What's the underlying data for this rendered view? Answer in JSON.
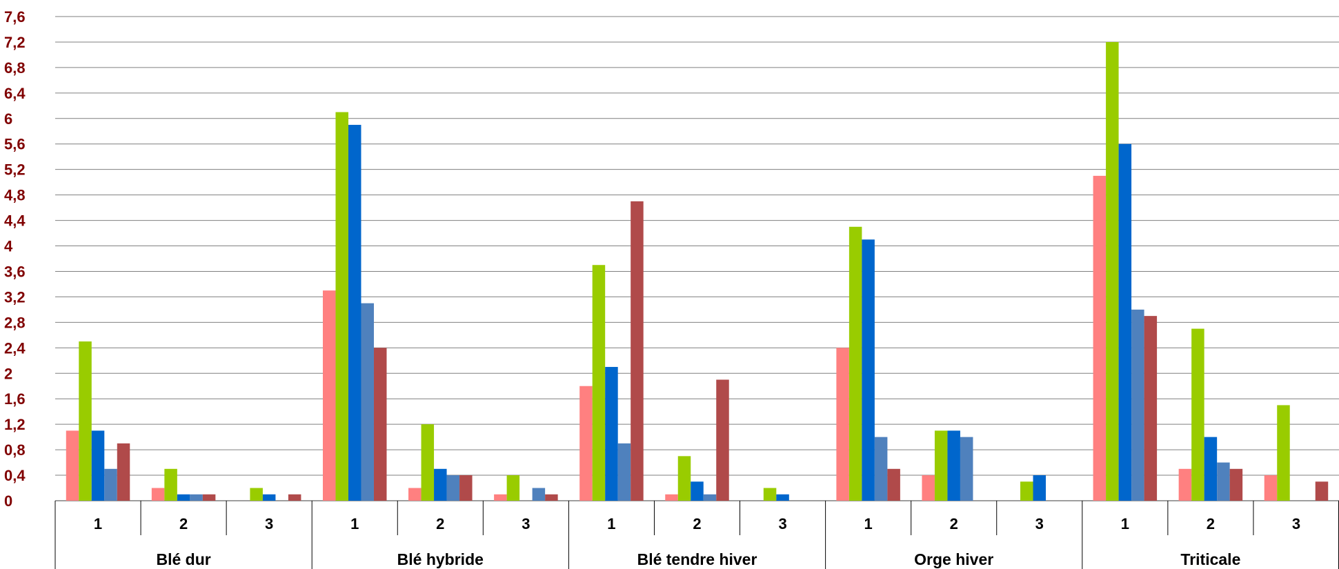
{
  "chart_data": {
    "type": "bar",
    "title": "",
    "xlabel": "",
    "ylabel": "",
    "ylim": [
      0,
      7.6
    ],
    "y_ticks": [
      "0",
      "0,4",
      "0,8",
      "1,2",
      "1,6",
      "2",
      "2,4",
      "2,8",
      "3,2",
      "3,6",
      "4",
      "4,4",
      "4,8",
      "5,2",
      "5,6",
      "6",
      "6,4",
      "6,8",
      "7,2",
      "7,6"
    ],
    "grid": true,
    "legend": "none",
    "groups": [
      {
        "label": "Blé dur",
        "sub": [
          {
            "label": "1",
            "values": [
              1.1,
              2.5,
              1.1,
              0.5,
              0.9
            ]
          },
          {
            "label": "2",
            "values": [
              0.2,
              0.5,
              0.1,
              0.1,
              0.1
            ]
          },
          {
            "label": "3",
            "values": [
              0,
              0.2,
              0.1,
              0,
              0.1
            ]
          }
        ]
      },
      {
        "label": "Blé hybride",
        "sub": [
          {
            "label": "1",
            "values": [
              3.3,
              6.1,
              5.9,
              3.1,
              2.4
            ]
          },
          {
            "label": "2",
            "values": [
              0.2,
              1.2,
              0.5,
              0.4,
              0.4
            ]
          },
          {
            "label": "3",
            "values": [
              0.1,
              0.4,
              0,
              0.2,
              0.1
            ]
          }
        ]
      },
      {
        "label": "Blé tendre hiver",
        "sub": [
          {
            "label": "1",
            "values": [
              1.8,
              3.7,
              2.1,
              0.9,
              4.7
            ]
          },
          {
            "label": "2",
            "values": [
              0.1,
              0.7,
              0.3,
              0.1,
              1.9
            ]
          },
          {
            "label": "3",
            "values": [
              0,
              0.2,
              0.1,
              0,
              0
            ]
          }
        ]
      },
      {
        "label": "Orge hiver",
        "sub": [
          {
            "label": "1",
            "values": [
              2.4,
              4.3,
              4.1,
              1.0,
              0.5
            ]
          },
          {
            "label": "2",
            "values": [
              0.4,
              1.1,
              1.1,
              1.0,
              0
            ]
          },
          {
            "label": "3",
            "values": [
              0,
              0.3,
              0.4,
              0,
              0
            ]
          }
        ]
      },
      {
        "label": "Triticale",
        "sub": [
          {
            "label": "1",
            "values": [
              5.1,
              7.2,
              5.6,
              3.0,
              2.9
            ]
          },
          {
            "label": "2",
            "values": [
              0.5,
              2.7,
              1.0,
              0.6,
              0.5
            ]
          },
          {
            "label": "3",
            "values": [
              0.4,
              1.5,
              0,
              0,
              0.3
            ]
          }
        ]
      }
    ],
    "series_colors": [
      "#ff8080",
      "#99cc00",
      "#0066cc",
      "#4f81bd",
      "#b04a4a"
    ],
    "tick_color": "#800000",
    "grid_color": "#7f7f7f"
  }
}
